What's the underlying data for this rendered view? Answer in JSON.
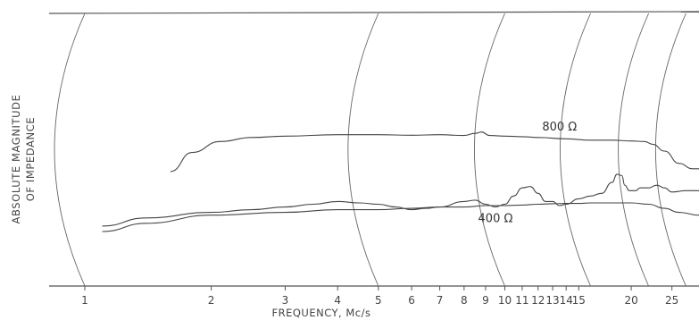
{
  "chart_data": {
    "type": "line",
    "xlabel": "FREQUENCY, Mc/s",
    "ylabel_line1": "ABSOLUTE MAGNITUDE",
    "ylabel_line2": "OF IMPEDANCE",
    "x_scale": "log",
    "xlim": [
      1,
      29
    ],
    "ylim": [
      0,
      1
    ],
    "grid": "curved frequency arcs (chart recorder)",
    "x_ticks": [
      {
        "value": 1,
        "label": "1"
      },
      {
        "value": 2,
        "label": "2"
      },
      {
        "value": 3,
        "label": "3"
      },
      {
        "value": 4,
        "label": "4"
      },
      {
        "value": 5,
        "label": "5"
      },
      {
        "value": 6,
        "label": "6"
      },
      {
        "value": 7,
        "label": "7"
      },
      {
        "value": 8,
        "label": "8"
      },
      {
        "value": 9,
        "label": "9"
      },
      {
        "value": 10,
        "label": "10"
      },
      {
        "value": 11,
        "label": "11"
      },
      {
        "value": 12,
        "label": "12"
      },
      {
        "value": 13,
        "label": "13"
      },
      {
        "value": 14,
        "label": "14"
      },
      {
        "value": 15,
        "label": "15"
      },
      {
        "value": 20,
        "label": "20"
      },
      {
        "value": 25,
        "label": "25"
      }
    ],
    "arc_frequencies": [
      1,
      5,
      10,
      16,
      22,
      27
    ],
    "series": [
      {
        "name": "800 Ω",
        "x": [
          1.6,
          1.8,
          2.1,
          2.5,
          3,
          4,
          5,
          6,
          7,
          8,
          8.5,
          8.8,
          9.2,
          10,
          11,
          12,
          14,
          16,
          18,
          20,
          21.5,
          22.5,
          24,
          26,
          28,
          29
        ],
        "y": [
          0.42,
          0.49,
          0.53,
          0.545,
          0.55,
          0.555,
          0.555,
          0.553,
          0.555,
          0.552,
          0.56,
          0.565,
          0.552,
          0.55,
          0.548,
          0.545,
          0.54,
          0.535,
          0.535,
          0.532,
          0.53,
          0.52,
          0.495,
          0.45,
          0.43,
          0.43
        ]
      },
      {
        "name": "400 Ω",
        "x": [
          1.1,
          1.4,
          2,
          3,
          4,
          5,
          6,
          7,
          8,
          9,
          10,
          11,
          12,
          13,
          14,
          15,
          16,
          18,
          20,
          22,
          24,
          26,
          29
        ],
        "y": [
          0.2,
          0.23,
          0.26,
          0.27,
          0.28,
          0.28,
          0.285,
          0.29,
          0.29,
          0.295,
          0.295,
          0.297,
          0.3,
          0.302,
          0.303,
          0.303,
          0.305,
          0.305,
          0.305,
          0.3,
          0.285,
          0.27,
          0.26
        ]
      },
      {
        "name": "",
        "x": [
          1.1,
          1.4,
          2,
          2.5,
          3,
          3.5,
          4,
          4.5,
          5,
          5.5,
          6,
          6.5,
          7,
          8,
          8.5,
          9,
          9.5,
          10,
          10.5,
          11,
          11.5,
          12,
          12.5,
          13,
          13.5,
          14,
          15,
          16,
          17,
          18,
          18.5,
          19,
          19.3,
          19.8,
          20.5,
          21,
          22,
          23,
          24,
          25,
          27,
          29
        ],
        "y": [
          0.22,
          0.25,
          0.27,
          0.28,
          0.29,
          0.3,
          0.31,
          0.305,
          0.3,
          0.29,
          0.28,
          0.285,
          0.29,
          0.31,
          0.315,
          0.3,
          0.29,
          0.3,
          0.33,
          0.36,
          0.365,
          0.34,
          0.31,
          0.31,
          0.295,
          0.3,
          0.32,
          0.33,
          0.34,
          0.38,
          0.41,
          0.405,
          0.37,
          0.35,
          0.35,
          0.36,
          0.36,
          0.37,
          0.36,
          0.345,
          0.35,
          0.35
        ]
      }
    ],
    "annotations": [
      {
        "text": "800 Ω",
        "x": 13.5,
        "y": 0.57
      },
      {
        "text": "400 Ω",
        "x": 9.5,
        "y": 0.235
      }
    ]
  }
}
